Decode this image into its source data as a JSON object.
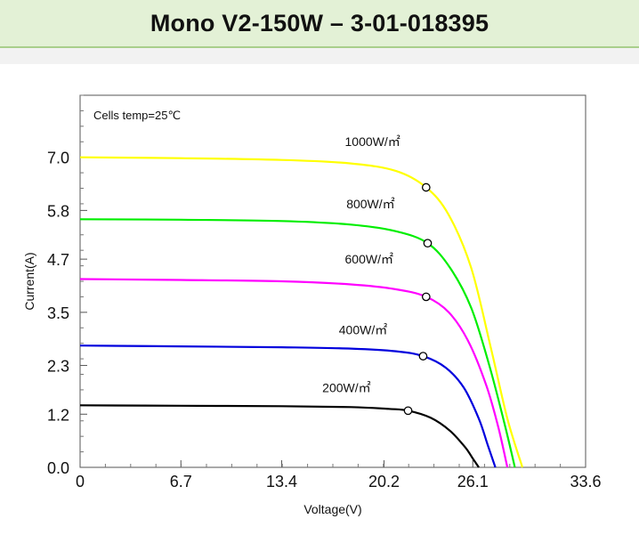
{
  "header": {
    "title": "Mono V2-150W – 3-01-018395"
  },
  "colors": {
    "header_bg": "#e3f1d6",
    "header_border": "#a9cf8c",
    "series_1000": "#ffff00",
    "series_800": "#00ee00",
    "series_600": "#ff00ff",
    "series_400": "#0000dd",
    "series_200": "#000000"
  },
  "chart_data": {
    "type": "line",
    "title": "",
    "xlabel": "Voltage(V)",
    "ylabel": "Current(A)",
    "xlim": [
      0,
      33.6
    ],
    "ylim": [
      0,
      8.4
    ],
    "x_ticks": [
      "0",
      "6.7",
      "13.4",
      "20.2",
      "26.1",
      "33.6"
    ],
    "y_ticks": [
      "0.0",
      "1.2",
      "2.3",
      "3.5",
      "4.7",
      "5.8",
      "7.0"
    ],
    "grid": false,
    "annotations": [
      {
        "text": "Cells temp=25℃"
      }
    ],
    "series": [
      {
        "name": "1000W/㎡",
        "color": "#ffff00",
        "isc": 7.0,
        "voc": 29.4,
        "mpp": {
          "v": 23.0,
          "i": 6.32
        },
        "label_at": {
          "v": 17.6,
          "i": 7.25
        },
        "points": [
          [
            0,
            7.0
          ],
          [
            6.7,
            6.98
          ],
          [
            13.4,
            6.94
          ],
          [
            18,
            6.86
          ],
          [
            21,
            6.69
          ],
          [
            23,
            6.32
          ],
          [
            24.5,
            5.7
          ],
          [
            26,
            4.5
          ],
          [
            27.3,
            2.7
          ],
          [
            28.4,
            1.1
          ],
          [
            29.4,
            0
          ]
        ]
      },
      {
        "name": "800W/㎡",
        "color": "#00ee00",
        "isc": 5.6,
        "voc": 28.9,
        "mpp": {
          "v": 23.1,
          "i": 5.06
        },
        "label_at": {
          "v": 17.7,
          "i": 5.85
        },
        "points": [
          [
            0,
            5.6
          ],
          [
            6.7,
            5.59
          ],
          [
            13.4,
            5.56
          ],
          [
            18,
            5.48
          ],
          [
            21,
            5.33
          ],
          [
            23.1,
            5.06
          ],
          [
            24.6,
            4.5
          ],
          [
            26,
            3.6
          ],
          [
            27.2,
            2.3
          ],
          [
            28.2,
            1.0
          ],
          [
            28.9,
            0
          ]
        ]
      },
      {
        "name": "600W/㎡",
        "color": "#ff00ff",
        "isc": 4.25,
        "voc": 28.4,
        "mpp": {
          "v": 23.0,
          "i": 3.85
        },
        "label_at": {
          "v": 17.6,
          "i": 4.6
        },
        "points": [
          [
            0,
            4.25
          ],
          [
            6.7,
            4.23
          ],
          [
            13.4,
            4.2
          ],
          [
            18,
            4.13
          ],
          [
            21,
            4.02
          ],
          [
            23,
            3.85
          ],
          [
            24.5,
            3.5
          ],
          [
            25.8,
            2.85
          ],
          [
            27,
            1.85
          ],
          [
            27.8,
            0.9
          ],
          [
            28.4,
            0
          ]
        ]
      },
      {
        "name": "400W/㎡",
        "color": "#0000dd",
        "isc": 2.75,
        "voc": 27.6,
        "mpp": {
          "v": 22.8,
          "i": 2.51
        },
        "label_at": {
          "v": 17.2,
          "i": 3.0
        },
        "points": [
          [
            0,
            2.75
          ],
          [
            6.7,
            2.73
          ],
          [
            13.4,
            2.71
          ],
          [
            18,
            2.68
          ],
          [
            21,
            2.62
          ],
          [
            22.8,
            2.51
          ],
          [
            24.3,
            2.25
          ],
          [
            25.5,
            1.8
          ],
          [
            26.5,
            1.1
          ],
          [
            27.1,
            0.5
          ],
          [
            27.6,
            0
          ]
        ]
      },
      {
        "name": "200W/㎡",
        "color": "#000000",
        "isc": 1.4,
        "voc": 26.5,
        "mpp": {
          "v": 21.8,
          "i": 1.28
        },
        "label_at": {
          "v": 16.1,
          "i": 1.7
        },
        "points": [
          [
            0,
            1.4
          ],
          [
            6.7,
            1.39
          ],
          [
            13.4,
            1.38
          ],
          [
            18,
            1.36
          ],
          [
            20.5,
            1.32
          ],
          [
            21.8,
            1.28
          ],
          [
            23.3,
            1.12
          ],
          [
            24.6,
            0.82
          ],
          [
            25.6,
            0.45
          ],
          [
            26.1,
            0.2
          ],
          [
            26.5,
            0
          ]
        ]
      }
    ]
  }
}
